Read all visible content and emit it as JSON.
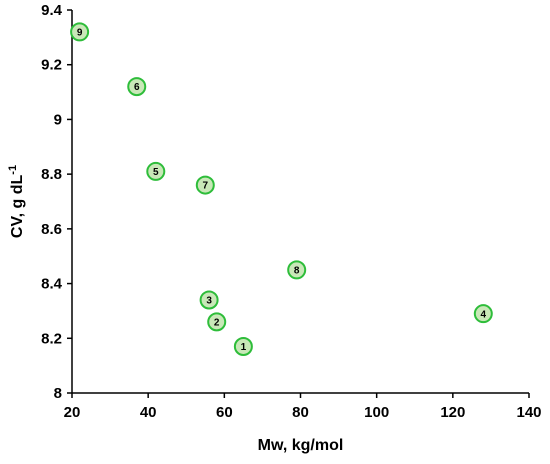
{
  "chart_data": {
    "type": "scatter",
    "xlabel": "Mw, kg/mol",
    "ylabel": "CV, g dL",
    "ylabel_sup": "-1",
    "xlim": [
      20,
      140
    ],
    "ylim": [
      8,
      9.4
    ],
    "xticks": [
      20,
      40,
      60,
      80,
      100,
      120,
      140
    ],
    "yticks": [
      8,
      8.2,
      8.4,
      8.6,
      8.8,
      9,
      9.2,
      9.4
    ],
    "xtick_labels": [
      "20",
      "40",
      "60",
      "80",
      "100",
      "120",
      "140"
    ],
    "ytick_labels": [
      "8",
      "8.2",
      "8.4",
      "8.6",
      "8.8",
      "9",
      "9.2",
      "9.4"
    ],
    "grid": false,
    "marker_fill": "#c9e8b8",
    "marker_stroke": "#2ebd3a",
    "points": [
      {
        "label": "1",
        "x": 65,
        "y": 8.17
      },
      {
        "label": "2",
        "x": 58,
        "y": 8.26
      },
      {
        "label": "3",
        "x": 56,
        "y": 8.34
      },
      {
        "label": "4",
        "x": 128,
        "y": 8.29
      },
      {
        "label": "5",
        "x": 42,
        "y": 8.81
      },
      {
        "label": "6",
        "x": 37,
        "y": 9.12
      },
      {
        "label": "7",
        "x": 55,
        "y": 8.76
      },
      {
        "label": "8",
        "x": 79,
        "y": 8.45
      },
      {
        "label": "9",
        "x": 22,
        "y": 9.32
      }
    ]
  }
}
